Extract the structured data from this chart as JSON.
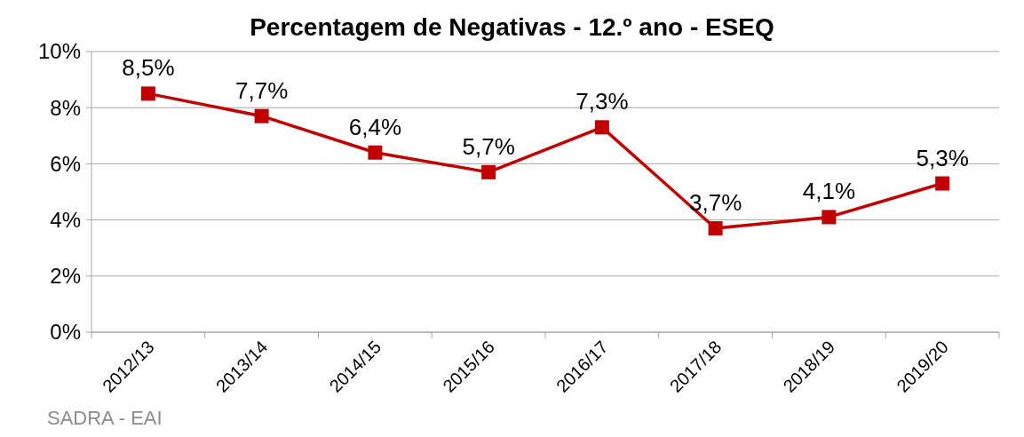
{
  "chart_data": {
    "type": "line",
    "title": "Percentagem de Negativas - 12.º ano - ESEQ",
    "categories": [
      "2012/13",
      "2013/14",
      "2014/15",
      "2015/16",
      "2016/17",
      "2017/18",
      "2018/19",
      "2019/20"
    ],
    "series": [
      {
        "color": "#c00000",
        "values": [
          8.5,
          7.7,
          6.4,
          5.7,
          7.3,
          3.7,
          4.1,
          5.3
        ],
        "value_labels": [
          "8,5%",
          "7,7%",
          "6,4%",
          "5,7%",
          "7,3%",
          "3,7%",
          "4,1%",
          "5,3%"
        ]
      }
    ],
    "ylim": [
      0,
      10
    ],
    "yticks": [
      {
        "value": 0,
        "label": "0%"
      },
      {
        "value": 2,
        "label": "2%"
      },
      {
        "value": 4,
        "label": "4%"
      },
      {
        "value": 6,
        "label": "6%"
      },
      {
        "value": 8,
        "label": "8%"
      },
      {
        "value": 10,
        "label": "10%"
      }
    ],
    "grid": "y",
    "marker": "square",
    "line_style": "solid",
    "annotations": [
      "SADRA - EAI"
    ]
  }
}
